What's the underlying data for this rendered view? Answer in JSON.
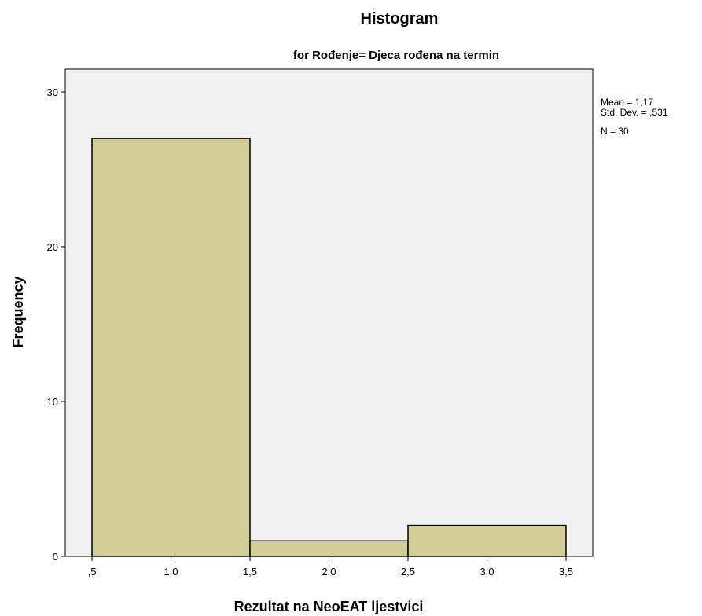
{
  "chart_data": {
    "type": "bar",
    "title": "Histogram",
    "subtitle": "for Rođenje= Djeca rođena na termin",
    "xlabel": "Rezultat na NeoEAT ljestvici",
    "ylabel": "Frequency",
    "bins": [
      {
        "start": 0.5,
        "end": 1.5,
        "value": 27
      },
      {
        "start": 1.5,
        "end": 2.5,
        "value": 1
      },
      {
        "start": 2.5,
        "end": 3.5,
        "value": 2
      }
    ],
    "xlim": [
      0.5,
      3.5
    ],
    "ylim": [
      0,
      32
    ],
    "x_ticks": [
      {
        "value": 0.5,
        "label": ",5"
      },
      {
        "value": 1.0,
        "label": "1,0"
      },
      {
        "value": 1.5,
        "label": "1,5"
      },
      {
        "value": 2.0,
        "label": "2,0"
      },
      {
        "value": 2.5,
        "label": "2,5"
      },
      {
        "value": 3.0,
        "label": "3,0"
      },
      {
        "value": 3.5,
        "label": "3,5"
      }
    ],
    "y_ticks": [
      {
        "value": 0,
        "label": "0"
      },
      {
        "value": 10,
        "label": "10"
      },
      {
        "value": 20,
        "label": "20"
      },
      {
        "value": 30,
        "label": "30"
      }
    ],
    "stats": {
      "mean": "Mean = 1,17",
      "std_dev": "Std. Dev. = ,531",
      "n": "N = 30"
    },
    "grid": false,
    "legend": "none",
    "colors": {
      "bar_fill": "#d3ce98",
      "bar_stroke": "#000000",
      "plot_background": "#f0f0f0",
      "plot_border": "#000000"
    }
  }
}
